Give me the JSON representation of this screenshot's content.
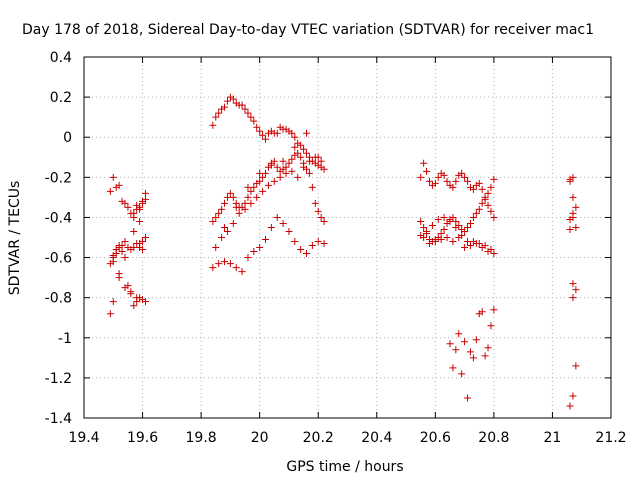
{
  "chart_data": {
    "type": "scatter",
    "title": "Day 178 of 2018, Sidereal Day-to-day VTEC variation (SDTVAR) for receiver mac1",
    "xlabel": "GPS time / hours",
    "ylabel": "SDTVAR / TECUs",
    "xlim": [
      19.4,
      21.2
    ],
    "ylim": [
      -1.4,
      0.4
    ],
    "xticks": [
      "19.4",
      "19.6",
      "19.8",
      "20",
      "20.2",
      "20.4",
      "20.6",
      "20.8",
      "21",
      "21.2"
    ],
    "yticks": [
      "-1.4",
      "-1.2",
      "-1",
      "-0.8",
      "-0.6",
      "-0.4",
      "-0.2",
      "0",
      "0.2",
      "0.4"
    ],
    "grid": true,
    "marker": "+",
    "color": "#cc0000",
    "series": [
      {
        "name": "mac1",
        "x": [
          19.49,
          19.5,
          19.51,
          19.52,
          19.53,
          19.54,
          19.55,
          19.56,
          19.57,
          19.58,
          19.59,
          19.6,
          19.61,
          19.49,
          19.5,
          19.51,
          19.52,
          19.53,
          19.54,
          19.55,
          19.56,
          19.57,
          19.58,
          19.59,
          19.6,
          19.61,
          19.5,
          19.52,
          19.54,
          19.56,
          19.58,
          19.59,
          19.6,
          19.61,
          19.57,
          19.58,
          19.59,
          19.6,
          19.61,
          19.49,
          19.5,
          19.51,
          19.52,
          19.53,
          19.54,
          19.55,
          19.56,
          19.57,
          19.58,
          19.59,
          19.6,
          19.61,
          19.5,
          19.52,
          19.57,
          19.59,
          19.84,
          19.85,
          19.86,
          19.87,
          19.88,
          19.89,
          19.9,
          19.91,
          19.92,
          19.93,
          19.94,
          19.95,
          19.96,
          19.97,
          19.98,
          19.99,
          20.0,
          20.01,
          20.02,
          20.03,
          20.04,
          20.05,
          20.06,
          20.07,
          20.08,
          20.09,
          20.1,
          20.11,
          20.12,
          20.13,
          20.14,
          20.15,
          20.16,
          20.17,
          20.18,
          20.19,
          20.2,
          20.21,
          20.22,
          19.84,
          19.85,
          19.86,
          19.87,
          19.88,
          19.89,
          19.9,
          19.91,
          19.92,
          19.93,
          19.94,
          19.95,
          19.96,
          19.97,
          19.98,
          19.99,
          20.0,
          20.01,
          20.02,
          20.03,
          20.04,
          20.05,
          20.06,
          20.07,
          20.08,
          20.09,
          20.1,
          20.11,
          20.12,
          20.13,
          20.14,
          20.15,
          20.16,
          20.17,
          20.18,
          20.19,
          20.2,
          20.21,
          20.22,
          19.84,
          19.86,
          19.88,
          19.9,
          19.92,
          19.94,
          19.96,
          19.98,
          20.0,
          20.02,
          20.04,
          20.06,
          20.08,
          20.1,
          20.12,
          20.14,
          20.16,
          20.18,
          20.2,
          20.22,
          19.85,
          19.87,
          19.89,
          19.91,
          19.93,
          19.95,
          19.97,
          19.99,
          20.01,
          20.03,
          20.05,
          20.07,
          20.09,
          20.11,
          20.13,
          20.15,
          20.17,
          20.19,
          20.21,
          19.88,
          19.92,
          19.96,
          20.0,
          20.04,
          20.08,
          20.12,
          20.16,
          20.2,
          20.55,
          20.56,
          20.57,
          20.58,
          20.59,
          20.6,
          20.61,
          20.62,
          20.63,
          20.64,
          20.65,
          20.66,
          20.67,
          20.68,
          20.69,
          20.7,
          20.71,
          20.72,
          20.73,
          20.74,
          20.75,
          20.76,
          20.77,
          20.78,
          20.79,
          20.8,
          20.55,
          20.56,
          20.57,
          20.58,
          20.59,
          20.6,
          20.61,
          20.62,
          20.63,
          20.64,
          20.65,
          20.66,
          20.67,
          20.68,
          20.69,
          20.7,
          20.71,
          20.72,
          20.73,
          20.74,
          20.75,
          20.76,
          20.77,
          20.78,
          20.79,
          20.8,
          20.55,
          20.57,
          20.59,
          20.61,
          20.63,
          20.65,
          20.67,
          20.69,
          20.71,
          20.73,
          20.75,
          20.77,
          20.79,
          20.56,
          20.58,
          20.6,
          20.62,
          20.64,
          20.66,
          20.68,
          20.7,
          20.72,
          20.74,
          20.76,
          20.78,
          20.8,
          20.65,
          20.67,
          20.68,
          20.7,
          20.71,
          20.72,
          20.73,
          20.75,
          20.76,
          20.77,
          20.78,
          20.79,
          20.8,
          20.66,
          20.69,
          20.74,
          21.06,
          21.07,
          21.08,
          21.06,
          21.07,
          21.08,
          21.06,
          21.07,
          21.08,
          21.07,
          21.06,
          21.07,
          21.08,
          21.07,
          21.06,
          21.07
        ],
        "y": [
          -0.27,
          -0.2,
          -0.25,
          -0.24,
          -0.32,
          -0.33,
          -0.35,
          -0.38,
          -0.4,
          -0.36,
          -0.35,
          -0.32,
          -0.28,
          -0.63,
          -0.59,
          -0.56,
          -0.54,
          -0.57,
          -0.6,
          -0.55,
          -0.56,
          -0.55,
          -0.53,
          -0.55,
          -0.52,
          -0.5,
          -0.62,
          -0.7,
          -0.75,
          -0.78,
          -0.82,
          -0.8,
          -0.81,
          -0.82,
          -0.38,
          -0.34,
          -0.36,
          -0.33,
          -0.31,
          -0.88,
          -0.82,
          -0.58,
          -0.55,
          -0.54,
          -0.52,
          -0.74,
          -0.77,
          -0.84,
          -0.8,
          -0.53,
          -0.56,
          -0.5,
          -0.6,
          -0.68,
          -0.47,
          -0.42,
          0.06,
          0.1,
          0.12,
          0.14,
          0.15,
          0.18,
          0.2,
          0.19,
          0.17,
          0.16,
          0.16,
          0.14,
          0.12,
          0.1,
          0.08,
          0.05,
          0.03,
          0.01,
          -0.01,
          0.02,
          0.03,
          0.02,
          0.02,
          0.05,
          0.04,
          0.04,
          0.03,
          0.02,
          0.0,
          -0.03,
          -0.04,
          -0.06,
          -0.08,
          -0.1,
          -0.12,
          -0.13,
          -0.14,
          -0.15,
          -0.16,
          -0.42,
          -0.4,
          -0.38,
          -0.36,
          -0.33,
          -0.3,
          -0.28,
          -0.3,
          -0.33,
          -0.35,
          -0.35,
          -0.33,
          -0.3,
          -0.27,
          -0.25,
          -0.23,
          -0.22,
          -0.2,
          -0.18,
          -0.15,
          -0.13,
          -0.12,
          -0.15,
          -0.17,
          -0.16,
          -0.15,
          -0.13,
          -0.11,
          -0.09,
          -0.08,
          -0.1,
          -0.13,
          -0.16,
          -0.18,
          -0.25,
          -0.33,
          -0.37,
          -0.4,
          -0.42,
          -0.65,
          -0.63,
          -0.62,
          -0.63,
          -0.65,
          -0.67,
          -0.6,
          -0.57,
          -0.55,
          -0.51,
          -0.45,
          -0.4,
          -0.43,
          -0.47,
          -0.52,
          -0.56,
          -0.58,
          -0.54,
          -0.52,
          -0.53,
          -0.55,
          -0.5,
          -0.47,
          -0.43,
          -0.38,
          -0.36,
          -0.33,
          -0.3,
          -0.27,
          -0.24,
          -0.22,
          -0.2,
          -0.18,
          -0.17,
          -0.2,
          -0.15,
          -0.12,
          -0.1,
          -0.12,
          -0.45,
          -0.35,
          -0.25,
          -0.18,
          -0.14,
          -0.12,
          -0.05,
          0.02,
          -0.1,
          -0.2,
          -0.13,
          -0.17,
          -0.22,
          -0.24,
          -0.23,
          -0.2,
          -0.18,
          -0.19,
          -0.22,
          -0.24,
          -0.25,
          -0.22,
          -0.19,
          -0.18,
          -0.2,
          -0.22,
          -0.25,
          -0.26,
          -0.24,
          -0.23,
          -0.26,
          -0.3,
          -0.28,
          -0.25,
          -0.21,
          -0.42,
          -0.45,
          -0.48,
          -0.51,
          -0.52,
          -0.51,
          -0.5,
          -0.48,
          -0.46,
          -0.43,
          -0.41,
          -0.4,
          -0.42,
          -0.44,
          -0.46,
          -0.47,
          -0.45,
          -0.43,
          -0.4,
          -0.38,
          -0.36,
          -0.33,
          -0.31,
          -0.34,
          -0.37,
          -0.4,
          -0.49,
          -0.47,
          -0.44,
          -0.41,
          -0.4,
          -0.42,
          -0.45,
          -0.49,
          -0.52,
          -0.52,
          -0.53,
          -0.54,
          -0.56,
          -0.5,
          -0.53,
          -0.52,
          -0.51,
          -0.5,
          -0.52,
          -0.5,
          -0.55,
          -0.54,
          -0.53,
          -0.55,
          -0.57,
          -0.58,
          -1.03,
          -1.06,
          -0.98,
          -1.02,
          -1.3,
          -1.07,
          -1.1,
          -0.88,
          -0.87,
          -1.09,
          -1.05,
          -0.94,
          -0.86,
          -1.15,
          -1.18,
          -1.01,
          -0.21,
          -0.2,
          -0.35,
          -0.41,
          -0.4,
          -0.45,
          -0.46,
          -0.73,
          -0.76,
          -0.8,
          -1.34,
          -1.29,
          -1.14,
          -0.3,
          -0.22,
          -0.38
        ]
      }
    ]
  }
}
